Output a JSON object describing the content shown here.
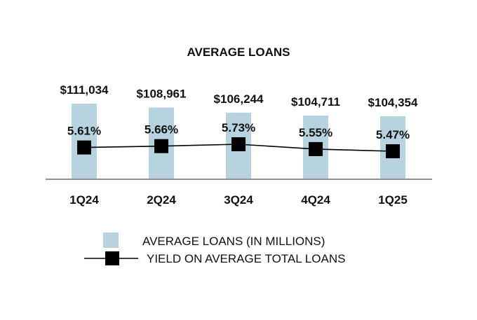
{
  "colors": {
    "bar": "#b7d3e0",
    "line": "#000000",
    "marker": "#000000",
    "axis": "#8f8f8f",
    "text": "#111111"
  },
  "chart_data": {
    "type": "bar",
    "title": "AVERAGE LOANS",
    "categories": [
      "1Q24",
      "2Q24",
      "3Q24",
      "4Q24",
      "1Q25"
    ],
    "series": [
      {
        "name": "AVERAGE LOANS (IN MILLIONS)",
        "type": "bar",
        "values": [
          111034,
          108961,
          106244,
          104711,
          104354
        ],
        "labels": [
          "$111,034",
          "$108,961",
          "$106,244",
          "$104,711",
          "$104,354"
        ]
      },
      {
        "name": "YIELD ON AVERAGE TOTAL LOANS",
        "type": "line",
        "marker": "square",
        "values": [
          5.61,
          5.66,
          5.73,
          5.55,
          5.47
        ],
        "labels": [
          "5.61%",
          "5.66%",
          "5.73%",
          "5.55%",
          "5.47%"
        ]
      }
    ],
    "grid": false,
    "legend": "bottom"
  }
}
